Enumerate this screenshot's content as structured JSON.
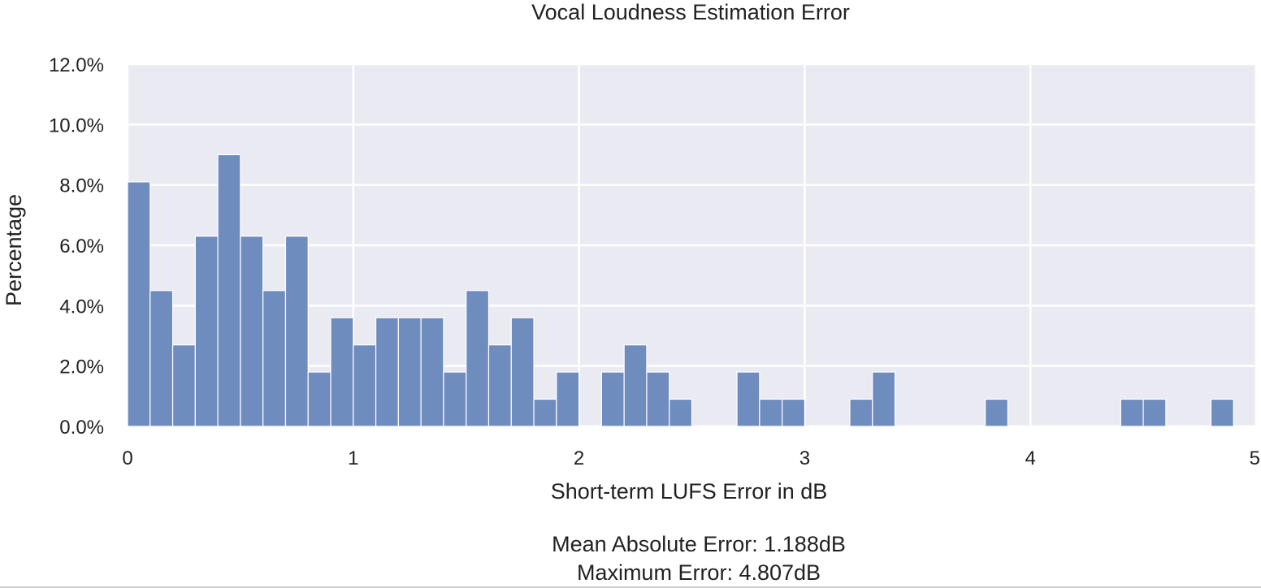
{
  "chart_data": {
    "type": "bar",
    "title": "Vocal Loudness Estimation Error",
    "xlabel": "Short-term LUFS Error in dB",
    "ylabel": "Percentage",
    "xlim": [
      0,
      5
    ],
    "ylim": [
      0,
      12
    ],
    "bin_width": 0.1,
    "x_ticks": [
      0,
      1,
      2,
      3,
      4,
      5
    ],
    "x_tick_labels": [
      "0",
      "1",
      "2",
      "3",
      "4",
      "5"
    ],
    "y_ticks": [
      0,
      2,
      4,
      6,
      8,
      10,
      12
    ],
    "y_tick_labels": [
      "0.0%",
      "2.0%",
      "4.0%",
      "6.0%",
      "8.0%",
      "10.0%",
      "12.0%"
    ],
    "grid": true,
    "bar_color": "#6f8cbf",
    "background_color": "#eaeaf2",
    "bins": [
      {
        "x": 0.0,
        "value": 8.1
      },
      {
        "x": 0.1,
        "value": 4.5
      },
      {
        "x": 0.2,
        "value": 2.7
      },
      {
        "x": 0.3,
        "value": 6.3
      },
      {
        "x": 0.4,
        "value": 9.0
      },
      {
        "x": 0.5,
        "value": 6.3
      },
      {
        "x": 0.6,
        "value": 4.5
      },
      {
        "x": 0.7,
        "value": 6.3
      },
      {
        "x": 0.8,
        "value": 1.8
      },
      {
        "x": 0.9,
        "value": 3.6
      },
      {
        "x": 1.0,
        "value": 2.7
      },
      {
        "x": 1.1,
        "value": 3.6
      },
      {
        "x": 1.2,
        "value": 3.6
      },
      {
        "x": 1.3,
        "value": 3.6
      },
      {
        "x": 1.4,
        "value": 1.8
      },
      {
        "x": 1.5,
        "value": 4.5
      },
      {
        "x": 1.6,
        "value": 2.7
      },
      {
        "x": 1.7,
        "value": 3.6
      },
      {
        "x": 1.8,
        "value": 0.9
      },
      {
        "x": 1.9,
        "value": 1.8
      },
      {
        "x": 2.1,
        "value": 1.8
      },
      {
        "x": 2.2,
        "value": 2.7
      },
      {
        "x": 2.3,
        "value": 1.8
      },
      {
        "x": 2.4,
        "value": 0.9
      },
      {
        "x": 2.7,
        "value": 1.8
      },
      {
        "x": 2.8,
        "value": 0.9
      },
      {
        "x": 2.9,
        "value": 0.9
      },
      {
        "x": 3.2,
        "value": 0.9
      },
      {
        "x": 3.3,
        "value": 1.8
      },
      {
        "x": 3.8,
        "value": 0.9
      },
      {
        "x": 4.4,
        "value": 0.9
      },
      {
        "x": 4.5,
        "value": 0.9
      },
      {
        "x": 4.8,
        "value": 0.9
      }
    ],
    "annotations": [
      "Mean Absolute Error: 1.188dB",
      "Maximum Error: 4.807dB"
    ]
  }
}
